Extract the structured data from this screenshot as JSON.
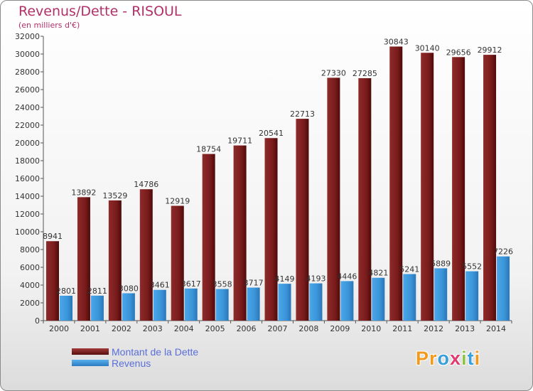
{
  "title": "Revenus/Dette - RISOUL",
  "subtitle": "(en milliers d'€)",
  "logo_text": "Proxiti",
  "colors": {
    "debt": "#7a1c1c",
    "revenue": "#3a95d8",
    "title": "#b03068",
    "legend_text": "#5a6fd8"
  },
  "chart_data": {
    "type": "bar",
    "categories": [
      "2000",
      "2001",
      "2002",
      "2003",
      "2004",
      "2005",
      "2006",
      "2007",
      "2008",
      "2009",
      "2010",
      "2011",
      "2012",
      "2013",
      "2014"
    ],
    "series": [
      {
        "name": "Montant de la Dette",
        "values": [
          8941,
          13892,
          13529,
          14786,
          12919,
          18754,
          19711,
          20541,
          22713,
          27330,
          27285,
          30843,
          30140,
          29656,
          29912
        ]
      },
      {
        "name": "Revenus",
        "values": [
          2801,
          2811,
          3080,
          3461,
          3617,
          3558,
          3717,
          4149,
          4193,
          4446,
          4821,
          5241,
          5889,
          5552,
          7226
        ]
      }
    ],
    "ylim": [
      0,
      32000
    ],
    "yticks": [
      0,
      2000,
      4000,
      6000,
      8000,
      10000,
      12000,
      14000,
      16000,
      18000,
      20000,
      22000,
      24000,
      26000,
      28000,
      30000,
      32000
    ],
    "grid": false,
    "legend": "bottom-left"
  }
}
